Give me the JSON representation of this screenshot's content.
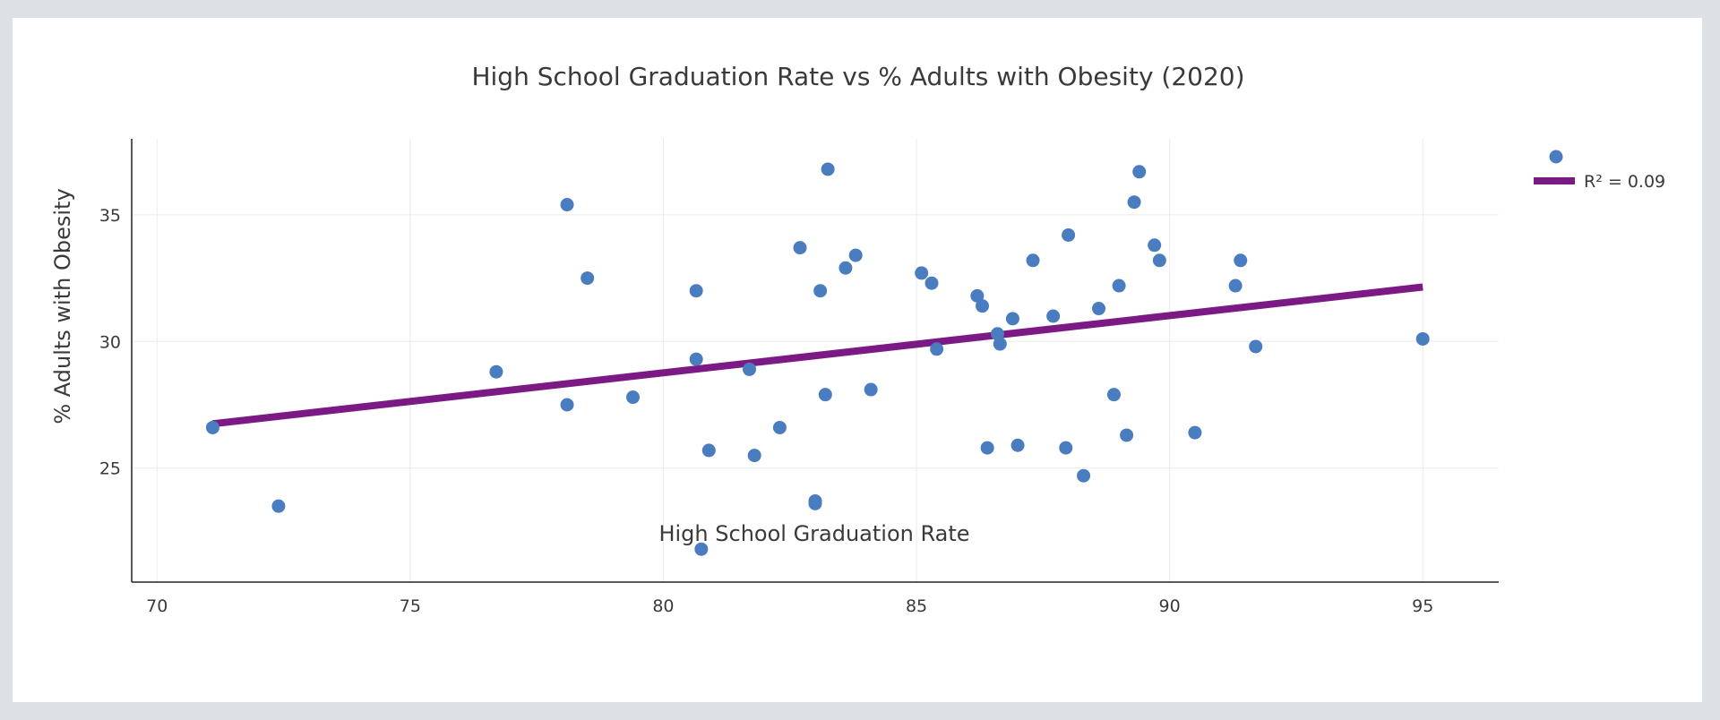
{
  "chart_data": {
    "type": "scatter",
    "title": "High School Graduation Rate vs % Adults with Obesity (2020)",
    "xlabel": "High School Graduation Rate",
    "ylabel": "% Adults with Obesity",
    "xlim": [
      69.5,
      96.5
    ],
    "ylim": [
      20.5,
      38
    ],
    "xticks": [
      70,
      75,
      80,
      85,
      90,
      95
    ],
    "yticks": [
      25,
      30,
      35
    ],
    "grid": true,
    "legend_position": "top-right",
    "colors": {
      "points": "#4a7dbf",
      "trendline": "#7b1a84"
    },
    "series": [
      {
        "points": [
          [
            71.1,
            26.6
          ],
          [
            72.4,
            23.5
          ],
          [
            76.7,
            28.8
          ],
          [
            78.1,
            27.5
          ],
          [
            78.1,
            35.4
          ],
          [
            78.5,
            32.5
          ],
          [
            79.4,
            27.8
          ],
          [
            80.65,
            32.0
          ],
          [
            80.65,
            29.3
          ],
          [
            80.75,
            21.8
          ],
          [
            80.9,
            25.7
          ],
          [
            81.7,
            28.9
          ],
          [
            81.8,
            25.5
          ],
          [
            82.3,
            26.6
          ],
          [
            82.7,
            33.7
          ],
          [
            83.0,
            23.7
          ],
          [
            83.0,
            23.6
          ],
          [
            83.1,
            32.0
          ],
          [
            83.2,
            27.9
          ],
          [
            83.25,
            36.8
          ],
          [
            83.6,
            32.9
          ],
          [
            83.8,
            33.4
          ],
          [
            84.1,
            28.1
          ],
          [
            85.1,
            32.7
          ],
          [
            85.3,
            32.3
          ],
          [
            85.4,
            29.7
          ],
          [
            86.2,
            31.8
          ],
          [
            86.3,
            31.4
          ],
          [
            86.4,
            25.8
          ],
          [
            86.6,
            30.3
          ],
          [
            86.65,
            29.9
          ],
          [
            86.9,
            30.9
          ],
          [
            87.0,
            25.9
          ],
          [
            87.3,
            33.2
          ],
          [
            87.7,
            31.0
          ],
          [
            87.95,
            25.8
          ],
          [
            88.0,
            34.2
          ],
          [
            88.3,
            24.7
          ],
          [
            88.6,
            31.3
          ],
          [
            88.9,
            27.9
          ],
          [
            89.0,
            32.2
          ],
          [
            89.15,
            26.3
          ],
          [
            89.3,
            35.5
          ],
          [
            89.4,
            36.7
          ],
          [
            89.7,
            33.8
          ],
          [
            89.8,
            33.2
          ],
          [
            90.5,
            26.4
          ],
          [
            91.3,
            32.2
          ],
          [
            91.4,
            33.2
          ],
          [
            91.7,
            29.8
          ],
          [
            95.0,
            30.1
          ]
        ]
      },
      {
        "type": "trendline",
        "name": "R² = 0.09",
        "x": [
          71.1,
          95.0
        ],
        "y": [
          26.75,
          32.15
        ]
      }
    ]
  }
}
